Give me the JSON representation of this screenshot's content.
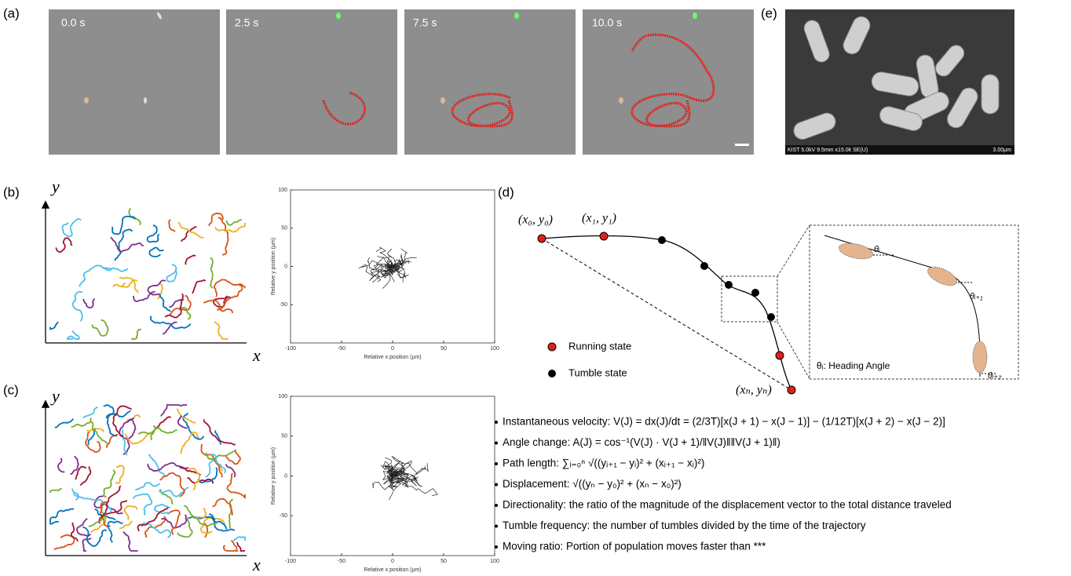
{
  "panels": [
    "(a)",
    "(b)",
    "(c)",
    "(d)",
    "(e)"
  ],
  "timelapse": {
    "times": [
      "0.0 s",
      "2.5 s",
      "7.5 s",
      "10.0 s"
    ]
  },
  "sem": {
    "caption": "KIST 5.0kV 9.5mm x15.0k SE(U)",
    "scale": "3.00µm"
  },
  "trajectories": {
    "y_axis": "y",
    "x_axis": "x"
  },
  "plots": [
    {
      "xlabel": "Relative x position (µm)",
      "ylabel": "Relative y position (µm)",
      "xlim": [
        -100,
        100
      ],
      "ylim": [
        -100,
        100
      ],
      "xticks": [
        -100,
        -50,
        0,
        50,
        100
      ],
      "yticks": [
        -50,
        0,
        50,
        100
      ]
    },
    {
      "xlabel": "Relative x position (µm)",
      "ylabel": "Relative y position (µm)",
      "xlim": [
        -100,
        100
      ],
      "ylim": [
        -100,
        100
      ],
      "xticks": [
        -100,
        -50,
        0,
        50,
        100
      ],
      "yticks": [
        -50,
        0,
        50,
        100
      ]
    }
  ],
  "diagram": {
    "points": [
      "(x₀, y₀)",
      "(x₁, y₁)",
      "(xₙ, yₙ)"
    ],
    "legend": [
      "Running state",
      "Tumble state"
    ],
    "angles": [
      "θᵢ",
      "θᵢ₊₁",
      "θᵢ₊₂"
    ],
    "angle_note": "θᵢ: Heading Angle"
  },
  "definitions": [
    "Instantaneous velocity: V(J) = dx(J)/dt = (2/3T)[x(J + 1) − x(J − 1)] − (1/12T)[x(J + 2) − x(J − 2)]",
    "Angle change: A(J) = cos⁻¹(V(J) · V(J + 1)/‖V(J)‖‖V(J + 1)‖)",
    "Path length: ∑ᵢ₌₀ⁿ √((yᵢ₊₁ − yᵢ)² + (xᵢ₊₁ − xᵢ)²)",
    "Displacement: √((yₙ − y₀)² + (xₙ − x₀)²)",
    "Directionality: the ratio of the magnitude of the displacement vector to the total distance traveled",
    "Tumble frequency: the number of tumbles divided by the time of the trajectory",
    "Moving ratio: Portion of population moves faster than ***"
  ]
}
